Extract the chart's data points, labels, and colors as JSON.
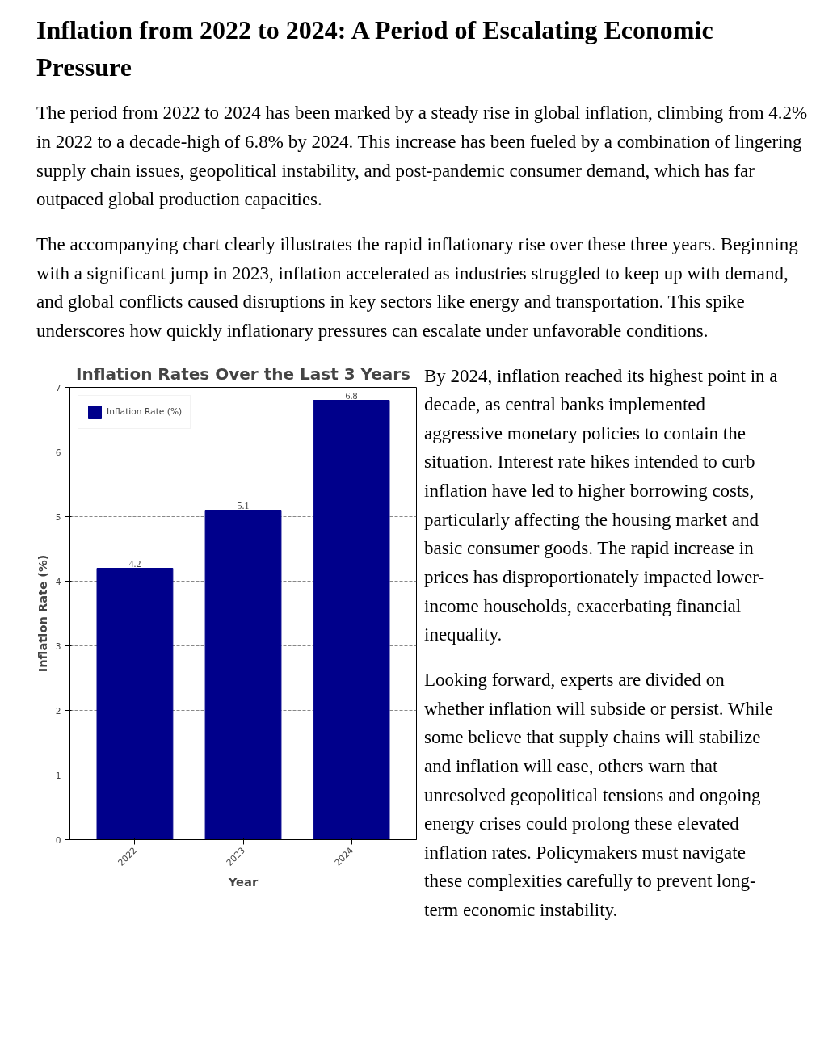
{
  "chart_data": {
    "type": "bar",
    "title": "Inflation Rates Over the Last 3 Years",
    "xlabel": "Year",
    "ylabel": "Inflation Rate (%)",
    "categories": [
      "2022",
      "2023",
      "2024"
    ],
    "series": [
      {
        "name": "Inflation Rate (%)",
        "color": "#00008b",
        "values": [
          4.2,
          5.1,
          6.8
        ]
      }
    ],
    "ylim": [
      0,
      7
    ],
    "yticks": [
      0,
      1,
      2,
      3,
      4,
      5,
      6,
      7
    ],
    "grid": "y",
    "legend": "top left",
    "data_labels": true,
    "annotations": [
      "Inflation from 2022 to 2024: A Period of Escalating Economic Pressure",
      "The period from 2022 to 2024 has been marked by a steady rise in global inflation, climbing from 4.2% in 2022 to a decade-high of 6.8% by 2024. This increase has been fueled by a combination of lingering supply chain issues, geopolitical instability, and post-pandemic consumer demand, which has far outpaced global production capacities.",
      "The accompanying chart clearly illustrates the rapid inflationary rise over these three years. Beginning with a significant jump in 2023, inflation accelerated as industries struggled to keep up with demand, and global conflicts caused disruptions in key sectors like energy and transportation. This spike underscores how quickly inflationary pressures can escalate under unfavorable conditions.",
      "By 2024, inflation reached its highest point in a decade, as central banks implemented aggressive monetary policies to contain the situation. Interest rate hikes intended to curb inflation have led to higher borrowing costs, particularly affecting the housing market and basic consumer goods. The rapid increase in prices has disproportionately impacted lower-income households, exacerbating financial inequality.",
      "Looking forward, experts are divided on whether inflation will subside or persist. While some believe that supply chains will stabilize and inflation will ease, others warn that unresolved geopolitical tensions and ongoing energy crises could prolong these elevated inflation rates. Policymakers must navigate these complexities carefully to prevent long-term economic instability."
    ]
  }
}
